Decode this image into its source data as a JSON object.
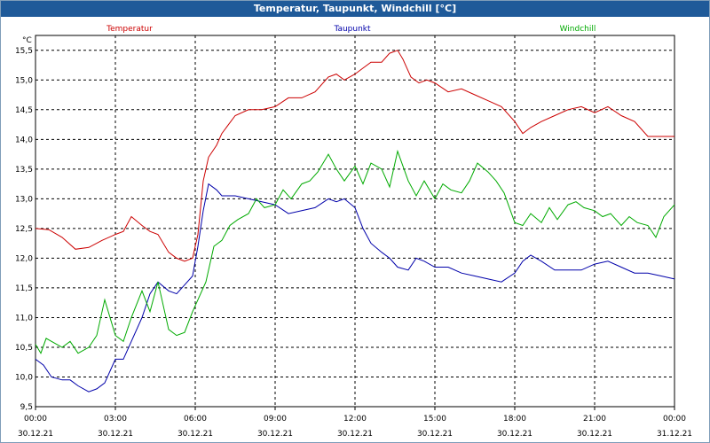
{
  "window": {
    "title": "Temperatur, Taupunkt, Windchill [°C]"
  },
  "chart_data": {
    "type": "line",
    "title": "Temperatur, Taupunkt, Windchill [°C]",
    "ylabel": "°C",
    "ylim": [
      9.5,
      15.75
    ],
    "xlim": [
      0,
      24
    ],
    "y_ticks": [
      9.5,
      10.0,
      10.5,
      11.0,
      11.5,
      12.0,
      12.5,
      13.0,
      13.5,
      14.0,
      14.5,
      15.0,
      15.5
    ],
    "y_tick_labels": [
      "9,5",
      "10,0",
      "10,5",
      "11,0",
      "11,5",
      "12,0",
      "12,5",
      "13,0",
      "13,5",
      "14,0",
      "14,5",
      "15,0",
      "15,5"
    ],
    "x_ticks": [
      0,
      3,
      6,
      9,
      12,
      15,
      18,
      21,
      24
    ],
    "x_tick_times": [
      "00:00",
      "03:00",
      "06:00",
      "09:00",
      "12:00",
      "15:00",
      "18:00",
      "21:00",
      "00:00"
    ],
    "x_tick_dates": [
      "30.12.21",
      "30.12.21",
      "30.12.21",
      "30.12.21",
      "30.12.21",
      "30.12.21",
      "30.12.21",
      "30.12.21",
      "31.12.21"
    ],
    "grid": true,
    "series": [
      {
        "name": "Temperatur",
        "color": "#cc0000",
        "x": [
          0,
          0.5,
          1,
          1.5,
          2,
          2.5,
          3,
          3.3,
          3.6,
          4,
          4.3,
          4.6,
          5,
          5.3,
          5.6,
          5.9,
          6.1,
          6.3,
          6.5,
          6.8,
          7,
          7.5,
          8,
          8.5,
          9,
          9.5,
          10,
          10.5,
          11,
          11.3,
          11.6,
          12,
          12.3,
          12.6,
          13,
          13.3,
          13.6,
          13.8,
          14.1,
          14.4,
          14.7,
          15,
          15.5,
          16,
          16.5,
          17,
          17.5,
          18,
          18.3,
          18.6,
          19,
          19.5,
          20,
          20.5,
          21,
          21.5,
          22,
          22.5,
          23,
          23.5,
          24
        ],
        "values": [
          12.5,
          12.48,
          12.35,
          12.15,
          12.18,
          12.3,
          12.4,
          12.45,
          12.7,
          12.55,
          12.45,
          12.4,
          12.1,
          12.0,
          11.95,
          12.0,
          12.4,
          13.3,
          13.7,
          13.9,
          14.1,
          14.4,
          14.5,
          14.5,
          14.55,
          14.7,
          14.7,
          14.8,
          15.05,
          15.1,
          15.0,
          15.1,
          15.2,
          15.3,
          15.3,
          15.45,
          15.5,
          15.35,
          15.05,
          14.95,
          15.0,
          14.95,
          14.8,
          14.85,
          14.75,
          14.65,
          14.55,
          14.3,
          14.1,
          14.2,
          14.3,
          14.4,
          14.5,
          14.55,
          14.45,
          14.55,
          14.4,
          14.3,
          14.05,
          14.05,
          14.05
        ]
      },
      {
        "name": "Taupunkt",
        "color": "#0000aa",
        "x": [
          0,
          0.3,
          0.6,
          1,
          1.3,
          1.6,
          2,
          2.3,
          2.6,
          3,
          3.3,
          3.6,
          4,
          4.3,
          4.6,
          5,
          5.3,
          5.6,
          5.9,
          6.1,
          6.3,
          6.5,
          6.8,
          7,
          7.5,
          8,
          8.5,
          9,
          9.5,
          10,
          10.5,
          11,
          11.3,
          11.6,
          12,
          12.3,
          12.6,
          13,
          13.3,
          13.6,
          14,
          14.3,
          14.6,
          15,
          15.5,
          16,
          16.5,
          17,
          17.5,
          18,
          18.3,
          18.6,
          19,
          19.5,
          20,
          20.5,
          21,
          21.5,
          22,
          22.5,
          23,
          23.5,
          24
        ],
        "values": [
          10.3,
          10.2,
          10.0,
          9.95,
          9.95,
          9.85,
          9.75,
          9.8,
          9.9,
          10.3,
          10.3,
          10.6,
          11.0,
          11.4,
          11.6,
          11.45,
          11.4,
          11.55,
          11.7,
          12.2,
          12.8,
          13.25,
          13.15,
          13.05,
          13.05,
          13.0,
          12.95,
          12.9,
          12.75,
          12.8,
          12.85,
          13.0,
          12.95,
          13.0,
          12.85,
          12.5,
          12.25,
          12.1,
          12.0,
          11.85,
          11.8,
          12.0,
          11.95,
          11.85,
          11.85,
          11.75,
          11.7,
          11.65,
          11.6,
          11.75,
          11.95,
          12.05,
          11.95,
          11.8,
          11.8,
          11.8,
          11.9,
          11.95,
          11.85,
          11.75,
          11.75,
          11.7,
          11.65
        ]
      },
      {
        "name": "Windchill",
        "color": "#00aa00",
        "x": [
          0,
          0.2,
          0.4,
          0.6,
          1,
          1.3,
          1.6,
          2,
          2.3,
          2.6,
          3,
          3.3,
          3.6,
          4,
          4.3,
          4.6,
          5,
          5.3,
          5.6,
          5.9,
          6.1,
          6.4,
          6.7,
          7,
          7.3,
          7.6,
          8,
          8.3,
          8.6,
          9,
          9.3,
          9.6,
          10,
          10.3,
          10.6,
          11,
          11.3,
          11.6,
          12,
          12.3,
          12.6,
          13,
          13.3,
          13.6,
          14,
          14.3,
          14.6,
          15,
          15.3,
          15.6,
          16,
          16.3,
          16.6,
          17,
          17.3,
          17.6,
          18,
          18.3,
          18.6,
          19,
          19.3,
          19.6,
          20,
          20.3,
          20.6,
          21,
          21.3,
          21.6,
          22,
          22.3,
          22.6,
          23,
          23.3,
          23.6,
          24
        ],
        "values": [
          10.55,
          10.4,
          10.65,
          10.6,
          10.5,
          10.6,
          10.4,
          10.5,
          10.7,
          11.3,
          10.7,
          10.6,
          11.0,
          11.45,
          11.1,
          11.6,
          10.8,
          10.7,
          10.75,
          11.1,
          11.3,
          11.6,
          12.2,
          12.3,
          12.55,
          12.65,
          12.75,
          13.0,
          12.85,
          12.9,
          13.15,
          13.0,
          13.25,
          13.3,
          13.45,
          13.75,
          13.5,
          13.3,
          13.55,
          13.25,
          13.6,
          13.5,
          13.2,
          13.8,
          13.3,
          13.05,
          13.3,
          13.0,
          13.25,
          13.15,
          13.1,
          13.3,
          13.6,
          13.45,
          13.3,
          13.1,
          12.6,
          12.55,
          12.75,
          12.6,
          12.85,
          12.65,
          12.9,
          12.95,
          12.85,
          12.8,
          12.7,
          12.75,
          12.55,
          12.7,
          12.6,
          12.55,
          12.35,
          12.7,
          12.9
        ]
      }
    ]
  }
}
